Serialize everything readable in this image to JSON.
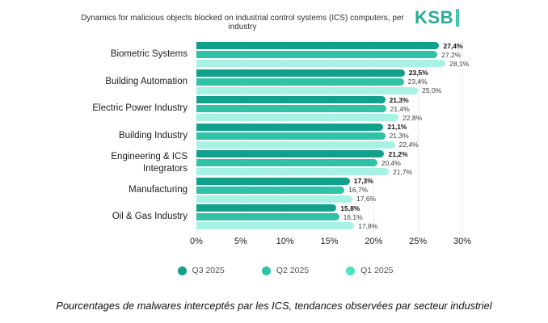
{
  "header": {
    "title": "Dynamics for malicious objects blocked on industrial control systems (ICS) computers, per industry",
    "logo": "KSB",
    "logo_color": "#2BAB95",
    "logo_bar_color": "#3FC9AE"
  },
  "chart_data": {
    "type": "bar",
    "orientation": "horizontal",
    "title": "Dynamics for malicious objects blocked on industrial control systems (ICS) computers, per industry",
    "categories": [
      "Biometric Systems",
      "Building Automation",
      "Electric Power Industry",
      "Building Industry",
      "Engineering & ICS Integrators",
      "Manufacturing",
      "Oil & Gas Industry"
    ],
    "series": [
      {
        "name": "Q3 2025",
        "color": "#10A08C",
        "legend_dot_color": "#10A08C",
        "emphasized_labels": true,
        "values": [
          27.4,
          23.5,
          21.3,
          21.1,
          21.2,
          17.3,
          15.8
        ],
        "labels": [
          "27,4%",
          "23,5%",
          "21,3%",
          "21,1%",
          "21,2%",
          "17,3%",
          "15,8%"
        ]
      },
      {
        "name": "Q2 2025",
        "color": "#2FC2A7",
        "legend_dot_color": "#2FC2A7",
        "emphasized_labels": false,
        "values": [
          27.2,
          23.4,
          21.4,
          21.3,
          20.4,
          16.7,
          16.1
        ],
        "labels": [
          "27,2%",
          "23,4%",
          "21,4%",
          "21,3%",
          "20,4%",
          "16,7%",
          "16,1%"
        ]
      },
      {
        "name": "Q1 2025",
        "color": "#A7F2E4",
        "legend_dot_color": "#4CE2C2",
        "emphasized_labels": false,
        "values": [
          28.1,
          25.0,
          22.8,
          22.4,
          21.7,
          17.6,
          17.8
        ],
        "labels": [
          "28,1%",
          "25,0%",
          "22,8%",
          "22,4%",
          "21,7%",
          "17,6%",
          "17,8%"
        ]
      }
    ],
    "xlim": [
      0,
      30
    ],
    "x_tick_values": [
      0,
      5,
      10,
      15,
      20,
      25,
      30
    ],
    "x_tick_labels": [
      "0%",
      "5%",
      "10%",
      "15%",
      "20%",
      "25%",
      "30%"
    ],
    "grid": "vertical",
    "grid_color": "#ebeeed",
    "legend_position": "bottom"
  },
  "caption": "Pourcentages de malwares interceptés par les ICS, tendances observées par secteur industriel"
}
